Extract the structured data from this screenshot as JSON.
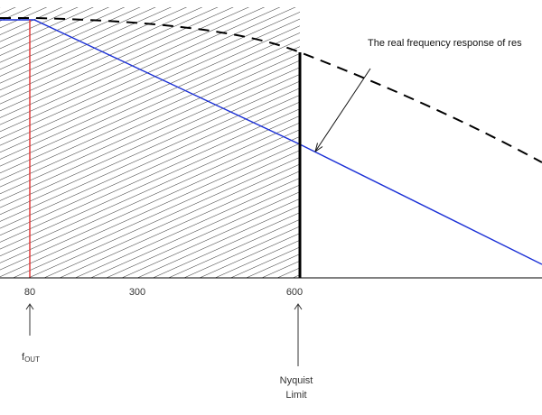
{
  "labels": {
    "annotation": "The real frequency response of res",
    "tick_80": "80",
    "tick_300": "300",
    "tick_600": "600",
    "fout_main": "f",
    "fout_sub": "OUT",
    "nyquist_line1": "Nyquist",
    "nyquist_line2": "Limit"
  },
  "colors": {
    "hatch": "#333333",
    "fout_line": "#e03030",
    "response_line": "#1a2fd6",
    "nyquist_bar": "#000000",
    "axis": "#000000",
    "dashed_curve": "#000000"
  }
}
